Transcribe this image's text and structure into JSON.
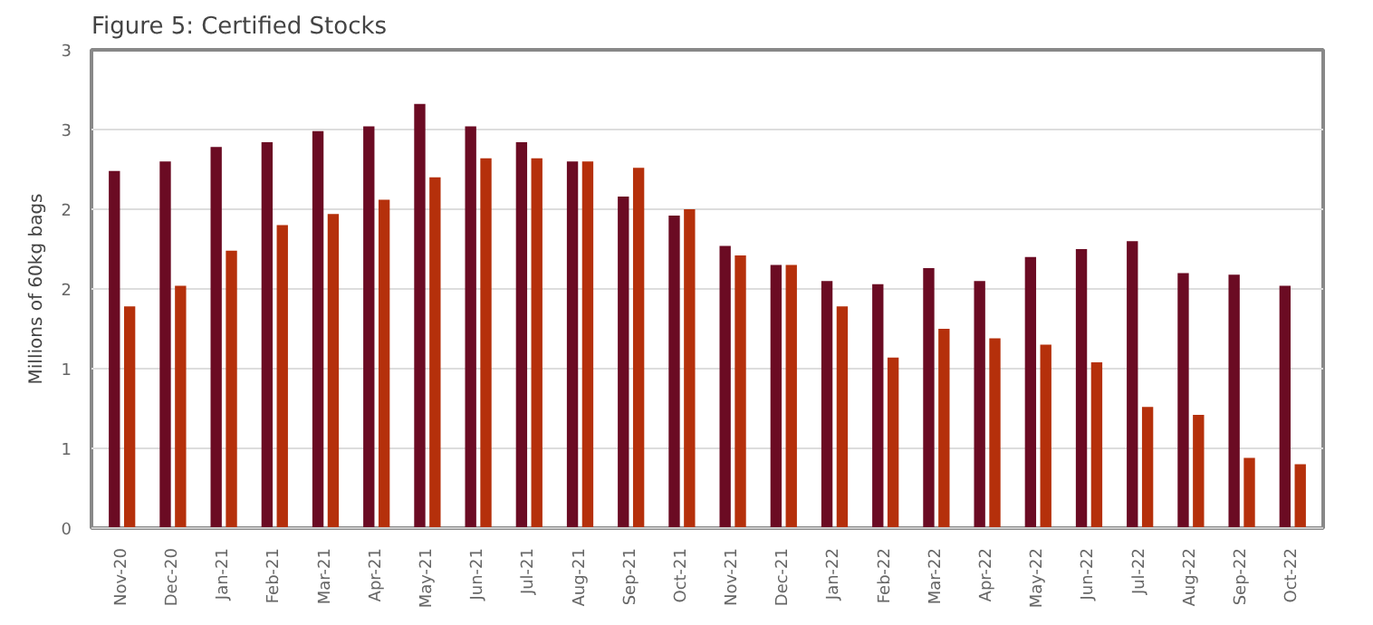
{
  "chart_data": {
    "type": "bar",
    "title": "Figure 5: Certified Stocks",
    "ylabel": "Millions of 60kg bags",
    "categories": [
      "Nov-20",
      "Dec-20",
      "Jan-21",
      "Feb-21",
      "Mar-21",
      "Apr-21",
      "May-21",
      "Jun-21",
      "Jul-21",
      "Aug-21",
      "Sep-21",
      "Oct-21",
      "Nov-21",
      "Dec-21",
      "Jan-22",
      "Feb-22",
      "Mar-22",
      "Apr-22",
      "May-22",
      "Jun-22",
      "Jul-22",
      "Aug-22",
      "Sep-22",
      "Oct-22"
    ],
    "series": [
      {
        "color": "#6b0b23",
        "values": [
          2.24,
          2.3,
          2.39,
          2.42,
          2.49,
          2.52,
          2.66,
          2.52,
          2.42,
          2.3,
          2.08,
          1.96,
          1.77,
          1.65,
          1.55,
          1.53,
          1.63,
          1.55,
          1.7,
          1.75,
          1.8,
          1.6,
          1.59,
          1.52
        ]
      },
      {
        "color": "#b5300b",
        "values": [
          1.39,
          1.52,
          1.74,
          1.9,
          1.97,
          2.06,
          2.2,
          2.32,
          2.32,
          2.3,
          2.26,
          2.0,
          1.71,
          1.65,
          1.39,
          1.07,
          1.25,
          1.19,
          1.15,
          1.04,
          0.76,
          0.71,
          0.44,
          0.4
        ]
      }
    ],
    "ylim": [
      0,
      3
    ],
    "yticks": [
      0,
      {
        "value": 0.5,
        "label": "1"
      },
      1,
      {
        "value": 1.5,
        "label": "2"
      },
      2,
      {
        "value": 2.5,
        "label": "3"
      },
      3
    ],
    "grid": "y"
  }
}
